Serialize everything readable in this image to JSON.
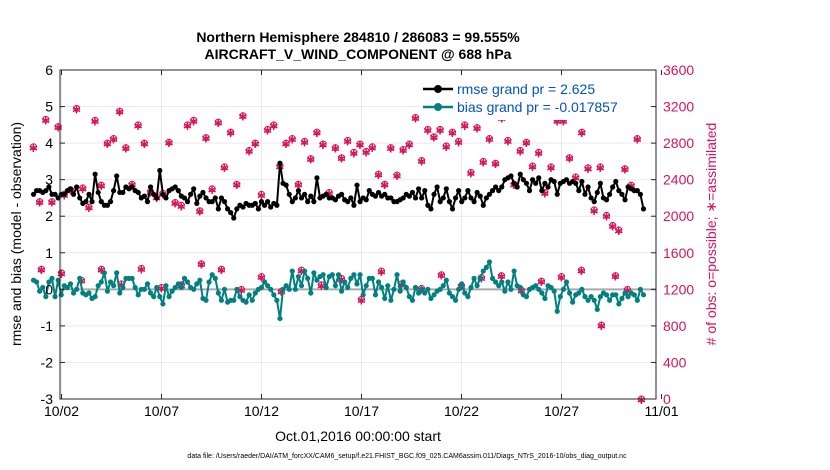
{
  "chart_data": {
    "type": "line",
    "title": [
      "Northern Hemisphere 284810 / 286083 = 99.555%",
      "AIRCRAFT_V_WIND_COMPONENT @ 688 hPa"
    ],
    "xlabel": "Oct.01,2016 00:00:00 start",
    "ylabel": "rmse and bias (model - observation)",
    "y2label": "# of obs: o=possible; ∗=assimilated",
    "xlim": [
      0.6,
      31.1
    ],
    "ylim": [
      -3,
      6
    ],
    "y2lim": [
      0,
      3600
    ],
    "x_ticks": [
      2,
      7,
      12,
      17,
      22,
      27,
      32
    ],
    "x_tick_labels": [
      "10/02",
      "10/07",
      "10/12",
      "10/17",
      "10/22",
      "10/27",
      "11/01"
    ],
    "y_ticks": [
      "-3",
      "-2",
      "-1",
      "0",
      "1",
      "2",
      "3",
      "4",
      "5",
      "6"
    ],
    "y2_ticks": [
      "0",
      "400",
      "800",
      "1200",
      "1600",
      "2000",
      "2400",
      "2800",
      "3200",
      "3600"
    ],
    "legend": {
      "position": "top-right",
      "entries": [
        "rmse grand pr = 2.625",
        "bias grand pr = -0.017857"
      ]
    },
    "colors": {
      "rmse": "#000000",
      "bias": "#008080",
      "obs": "#d6155a",
      "zero_line": "#aaaaaa",
      "grid": "#e9e9e9"
    },
    "series": [
      {
        "name": "rmse",
        "values": [
          2.6,
          2.7,
          2.7,
          2.65,
          2.7,
          2.8,
          2.6,
          2.6,
          2.5,
          2.6,
          2.6,
          2.7,
          2.75,
          2.6,
          2.8,
          2.5,
          2.35,
          2.4,
          2.6,
          2.4,
          3.15,
          2.65,
          2.4,
          2.3,
          2.3,
          2.4,
          2.7,
          3.1,
          2.65,
          2.65,
          2.8,
          2.75,
          2.8,
          2.7,
          2.65,
          2.5,
          2.55,
          2.4,
          2.8,
          2.6,
          2.5,
          3.25,
          2.6,
          2.5,
          2.7,
          2.75,
          2.8,
          2.7,
          2.55,
          2.5,
          2.4,
          2.6,
          2.75,
          2.35,
          2.55,
          2.65,
          2.5,
          2.4,
          2.4,
          2.5,
          2.2,
          2.5,
          2.4,
          2.2,
          2.1,
          1.95,
          2.2,
          2.3,
          2.25,
          2.35,
          2.3,
          2.3,
          2.35,
          2.2,
          2.4,
          2.3,
          2.4,
          2.25,
          2.35,
          2.3,
          3.45,
          2.9,
          2.85,
          2.6,
          2.4,
          2.5,
          2.7,
          2.5,
          2.6,
          2.4,
          2.55,
          2.4,
          3.05,
          2.5,
          2.55,
          2.6,
          2.5,
          2.5,
          2.45,
          2.55,
          2.6,
          2.45,
          2.4,
          2.5,
          2.3,
          2.85,
          2.4,
          2.5,
          2.45,
          2.7,
          2.6,
          2.55,
          2.65,
          2.55,
          2.6,
          2.5,
          2.5,
          2.4,
          2.4,
          2.45,
          2.5,
          2.6,
          2.55,
          2.65,
          2.5,
          2.75,
          2.5,
          2.7,
          2.3,
          2.2,
          2.6,
          2.8,
          2.4,
          2.5,
          2.75,
          2.4,
          2.2,
          2.5,
          2.7,
          2.4,
          2.5,
          2.7,
          2.5,
          2.4,
          2.65,
          2.55,
          2.3,
          2.5,
          2.6,
          2.7,
          2.8,
          2.7,
          2.8,
          3.0,
          3.05,
          3.1,
          2.9,
          2.8,
          3.15,
          3.0,
          2.9,
          2.7,
          3.0,
          2.9,
          3.05,
          2.7,
          2.9,
          2.8,
          3.0,
          2.95,
          2.6,
          2.9,
          2.95,
          3.0,
          2.9,
          2.95,
          2.9,
          2.7,
          2.95,
          2.6,
          2.8,
          2.5,
          2.4,
          2.65,
          2.9,
          2.5,
          2.45,
          2.6,
          2.8,
          2.95,
          2.7,
          2.6,
          2.45,
          2.8,
          2.75,
          2.7,
          2.7,
          2.6,
          2.2
        ]
      },
      {
        "name": "bias",
        "values": [
          0.25,
          0.2,
          -0.05,
          0.05,
          -0.2,
          0.2,
          0.3,
          -0.2,
          0.25,
          -0.15,
          0.1,
          0.05,
          0.15,
          -0.1,
          0.0,
          0.3,
          -0.1,
          -0.15,
          -0.1,
          -0.25,
          -0.2,
          0.1,
          0.2,
          0.45,
          -0.05,
          0.2,
          0.1,
          0.45,
          -0.1,
          0.05,
          0.3,
          0.3,
          0.3,
          0.05,
          -0.15,
          0.0,
          0.0,
          0.15,
          -0.1,
          -0.2,
          0.05,
          -0.2,
          -0.4,
          0.1,
          -0.2,
          -0.05,
          0.05,
          0.15,
          0.05,
          0.3,
          0.2,
          0.05,
          0.0,
          0.15,
          0.25,
          -0.25,
          -0.3,
          0.2,
          0.4,
          0.3,
          -0.1,
          -0.3,
          0.0,
          -0.35,
          -0.3,
          -0.3,
          0.0,
          -0.2,
          -0.3,
          -0.35,
          -0.15,
          -0.3,
          -0.1,
          0.0,
          0.05,
          0.2,
          0.1,
          0.0,
          -0.15,
          -0.3,
          -0.8,
          0.0,
          0.1,
          0.0,
          0.5,
          0.0,
          0.35,
          0.1,
          0.5,
          0.3,
          -0.1,
          0.45,
          0.25,
          0.35,
          0.4,
          0.05,
          0.35,
          0.4,
          0.1,
          0.4,
          -0.05,
          0.2,
          0.05,
          0.3,
          0.4,
          0.15,
          0.4,
          -0.15,
          0.1,
          0.3,
          0.3,
          -0.15,
          0.2,
          0.05,
          -0.25,
          0.1,
          -0.3,
          0.0,
          0.4,
          -0.05,
          0.2,
          0.05,
          -0.2,
          -0.3,
          0.05,
          -0.1,
          0.0,
          -0.1,
          0.0,
          -0.25,
          -0.15,
          -0.05,
          0.0,
          0.1,
          0.25,
          -0.1,
          -0.2,
          -0.3,
          0.0,
          0.15,
          -0.1,
          -0.2,
          0.05,
          0.3,
          0.1,
          0.3,
          0.5,
          0.6,
          0.75,
          0.3,
          0.2,
          0.1,
          0.2,
          -0.05,
          0.2,
          0.0,
          0.5,
          0.1,
          0.05,
          -0.15,
          -0.2,
          0.0,
          0.05,
          0.1,
          0.0,
          -0.1,
          -0.25,
          0.1,
          0.05,
          -0.05,
          -0.6,
          -0.2,
          0.0,
          0.2,
          -0.1,
          -0.35,
          -0.15,
          -0.1,
          0.0,
          -0.2,
          -0.3,
          -0.2,
          -0.3,
          -0.55,
          -0.2,
          -0.1,
          -0.15,
          -0.3,
          -0.15,
          -0.15,
          -0.4,
          -0.25,
          -0.1,
          -0.2,
          -0.1,
          -0.15,
          -0.3,
          0.0,
          -0.15
        ]
      },
      {
        "name": "obs_possible",
        "values": [
          2760,
          3050,
          2160,
          2150,
          3060,
          2200,
          2160,
          2660,
          2980,
          3020,
          2240,
          2640,
          2290,
          2120,
          3180,
          2200,
          2310,
          2580,
          2100,
          2260,
          3050,
          2970,
          2340,
          2080,
          2800,
          3100,
          2850,
          2150,
          3150,
          3140,
          2750,
          3200,
          2350,
          2180,
          3000,
          2870,
          2800,
          2280,
          2270,
          2800,
          2210,
          2920,
          2250,
          2080,
          2810,
          2760,
          2150,
          2990,
          2120,
          2250,
          3000,
          2650,
          3050,
          3230,
          2060,
          2570,
          2860,
          2950,
          2300,
          2760,
          3030,
          2360,
          2540,
          2710,
          2920,
          2240,
          2350,
          2900,
          3100,
          2250,
          2720,
          2400,
          2800,
          2500,
          2240,
          2330,
          2950,
          2580,
          3000,
          2680,
          2550,
          2830,
          2800,
          2560,
          2850,
          2830,
          2350,
          2260,
          2820,
          2620,
          2630,
          2830,
          2920,
          2820,
          2790,
          2480,
          2260,
          2610,
          2750,
          2280,
          2640,
          2600,
          2830,
          2860,
          2700,
          2810,
          2790,
          2960,
          2710,
          2500,
          2760,
          3200,
          2460,
          2810,
          2350,
          2910,
          2750,
          2520,
          2450,
          2850,
          2730,
          2850,
          2790,
          2910,
          3080,
          3040,
          2610,
          2880,
          2950,
          2630,
          2870,
          2580,
          2950,
          2780,
          2770,
          2670,
          2920,
          2800,
          2820,
          2750,
          3000,
          2880,
          2480,
          2840,
          2970,
          2700,
          2600,
          2750,
          2850,
          2650,
          2580,
          2410,
          3080,
          2560,
          2830,
          2760,
          2350,
          2780,
          2720,
          2550,
          2810,
          2830,
          2550,
          2480,
          2700,
          2560,
          2260,
          3000,
          2540,
          2550,
          3050,
          2720,
          3050,
          2770,
          2640,
          2740,
          2430,
          2320,
          2920,
          2160,
          2530,
          2690,
          2070,
          2450,
          2540,
          2790,
          2010,
          2680,
          1900,
          2280,
          1850,
          1590,
          2520,
          1460,
          2340,
          2780,
          2850,
          1930
        ]
      },
      {
        "name": "obs_assimilated",
        "values": [
          2760,
          3050,
          2160,
          2150,
          3060,
          2200,
          2160,
          2660,
          2980,
          3020,
          2240,
          2640,
          2290,
          2120,
          3180,
          2200,
          2310,
          2580,
          2100,
          2260,
          3050,
          2970,
          2340,
          2080,
          2800,
          3100,
          2850,
          2150,
          3150,
          3140,
          2750,
          3200,
          2350,
          2180,
          3000,
          2870,
          2800,
          2280,
          2270,
          2800,
          2210,
          2920,
          2250,
          2080,
          2810,
          2760,
          2150,
          2990,
          2120,
          2250,
          3000,
          2650,
          3050,
          3230,
          2060,
          2570,
          2860,
          2950,
          2300,
          2760,
          3030,
          2360,
          2540,
          2710,
          2920,
          2240,
          2350,
          2900,
          3100,
          2250,
          2720,
          2400,
          2800,
          2500,
          2240,
          2330,
          2950,
          2580,
          3000,
          2680,
          2550,
          2830,
          2800,
          2560,
          2850,
          2830,
          2350,
          2260,
          2820,
          2620,
          2630,
          2830,
          2920,
          2820,
          2790,
          2480,
          2260,
          2610,
          2750,
          2280,
          2640,
          2600,
          2830,
          2860,
          2700,
          2810,
          2790,
          2960,
          2710,
          2500,
          2760,
          3200,
          2460,
          2810,
          2350,
          2910,
          2750,
          2520,
          2450,
          2850,
          2730,
          2850,
          2790,
          2910,
          3080,
          3040,
          2610,
          2880,
          2950,
          2630,
          2870,
          2580,
          2950,
          2780,
          2770,
          2670,
          2920,
          2800,
          2820,
          2750,
          3000,
          2880,
          2480,
          2840,
          2970,
          2700,
          2600,
          2750,
          2850,
          2650,
          2580,
          2410,
          3080,
          2560,
          2830,
          2760,
          2350,
          2780,
          2720,
          2550,
          2810,
          2830,
          2550,
          2480,
          2700,
          2560,
          2260,
          3000,
          2540,
          2550,
          3050,
          2720,
          3050,
          2770,
          2640,
          2740,
          2430,
          2320,
          2920,
          2160,
          2530,
          2690,
          2070,
          2450,
          2540,
          2790,
          2010,
          2680,
          1900,
          2280,
          1850,
          1590,
          2520,
          1460,
          2340,
          2780,
          2850,
          1930
        ]
      }
    ],
    "obs_low": {
      "x": [
        1.0,
        2.0,
        3.0,
        4.0,
        5.0,
        6.0,
        7.0,
        8.0,
        9.0,
        10.0,
        11.0,
        12.0,
        13.0,
        14.0,
        15.0,
        16.0,
        17.0,
        18.0,
        19.0,
        20.0,
        21.0,
        22.0,
        23.0,
        24.0,
        25.0,
        26.0,
        27.0,
        28.0,
        29.0,
        29.7,
        30.3,
        31.0
      ],
      "values": [
        1420,
        1380,
        1300,
        1420,
        1260,
        1430,
        1220,
        1250,
        1480,
        1420,
        1200,
        1340,
        1180,
        1410,
        1250,
        1320,
        1090,
        1400,
        1260,
        1210,
        1360,
        1240,
        1330,
        1350,
        1190,
        1290,
        1340,
        1410,
        810,
        1350,
        1200,
        0
      ]
    }
  },
  "footer_text": "data file: /Users/raeder/DAI/ATM_forcXX/CAM6_setup/f.e21.FHIST_BGC.f09_025.CAM6assim.011/Diags_NTrS_2016-10/obs_diag_output.nc"
}
